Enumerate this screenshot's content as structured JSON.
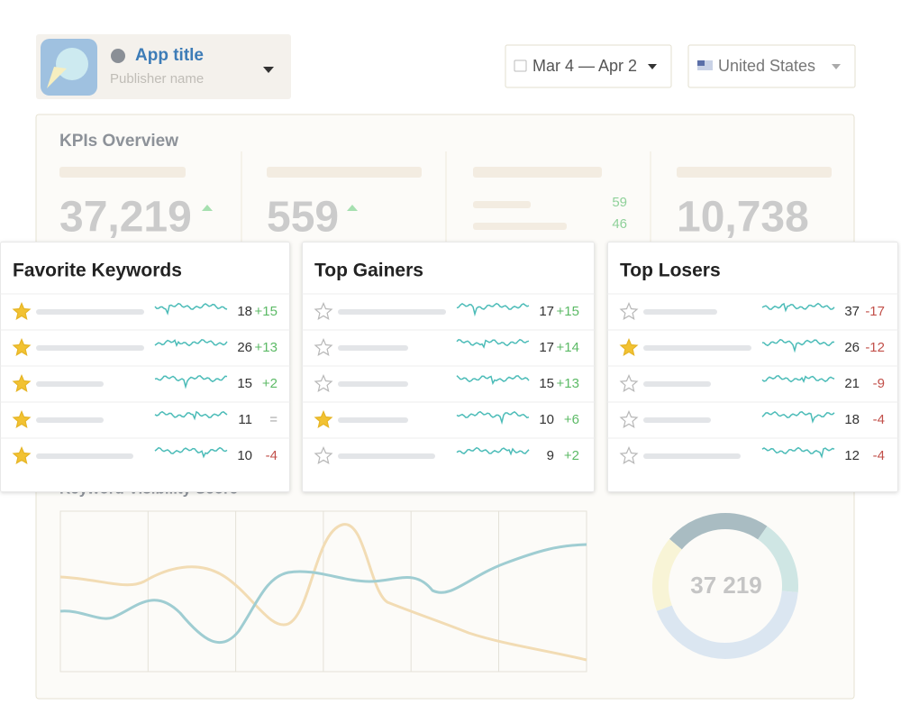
{
  "header": {
    "app_title": "App title",
    "publisher": "Publisher name",
    "date_range": "Mar 4 — Apr 2",
    "country": "United States"
  },
  "kpis": {
    "title": "KPIs Overview",
    "items": [
      {
        "value": "37,219"
      },
      {
        "value": "559"
      },
      {
        "values": [
          "59",
          "46"
        ]
      },
      {
        "value": "10,738"
      }
    ]
  },
  "visibility": {
    "title": "Keyword Visibility Score",
    "total": "37 219"
  },
  "cards": [
    {
      "title": "Favorite Keywords",
      "rows": [
        {
          "favorite": true,
          "rank": 18,
          "change": "+15"
        },
        {
          "favorite": true,
          "rank": 26,
          "change": "+13"
        },
        {
          "favorite": true,
          "rank": 15,
          "change": "+2"
        },
        {
          "favorite": true,
          "rank": 11,
          "change": "="
        },
        {
          "favorite": true,
          "rank": 10,
          "change": "-4"
        }
      ]
    },
    {
      "title": "Top Gainers",
      "rows": [
        {
          "favorite": false,
          "rank": 17,
          "change": "+15"
        },
        {
          "favorite": false,
          "rank": 17,
          "change": "+14"
        },
        {
          "favorite": false,
          "rank": 15,
          "change": "+13"
        },
        {
          "favorite": true,
          "rank": 10,
          "change": "+6"
        },
        {
          "favorite": false,
          "rank": 9,
          "change": "+2"
        }
      ]
    },
    {
      "title": "Top Losers",
      "rows": [
        {
          "favorite": false,
          "rank": 37,
          "change": "-17"
        },
        {
          "favorite": true,
          "rank": 26,
          "change": "-12"
        },
        {
          "favorite": false,
          "rank": 21,
          "change": "-9"
        },
        {
          "favorite": false,
          "rank": 18,
          "change": "-4"
        },
        {
          "favorite": false,
          "rank": 12,
          "change": "-4"
        }
      ]
    }
  ]
}
